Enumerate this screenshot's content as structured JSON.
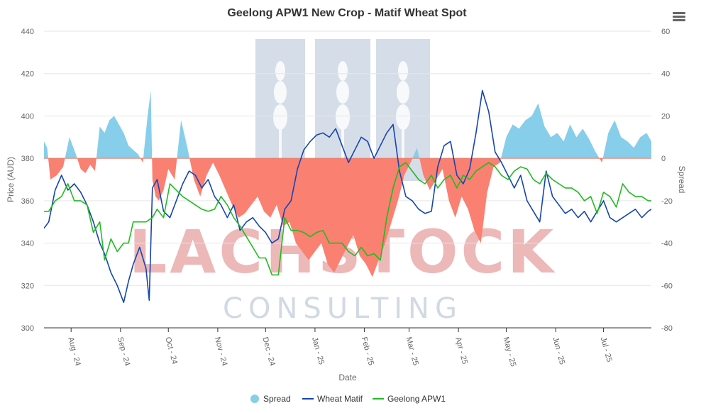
{
  "menu_icon": "hamburger-menu-icon",
  "watermark": {
    "line1": "LACHSTOCK",
    "line2": "CONSULTING",
    "icon": "wheat-logo"
  },
  "colors": {
    "spread_pos": "#87CEEB",
    "spread_neg": "#FA8072",
    "wheat_matif": "#1645B0",
    "geelong": "#22BB22",
    "grid": "#E6E6E6"
  },
  "chart_data": {
    "type": "line",
    "title": "Geelong APW1 New Crop - Matif Wheat Spot",
    "xlabel": "Date",
    "ylabel": "Price (AUD)",
    "y2label": "Spread",
    "ylim": [
      300,
      440
    ],
    "y_ticks": [
      300,
      320,
      340,
      360,
      380,
      400,
      420,
      440
    ],
    "y2lim": [
      -80,
      60
    ],
    "y2_ticks": [
      -80,
      -60,
      -40,
      -20,
      0,
      20,
      40,
      60
    ],
    "x_range": [
      "2024-07-15",
      "2025-07-31"
    ],
    "x_ticks": [
      {
        "date": "2024-08-01",
        "label": "Aug - 24"
      },
      {
        "date": "2024-09-01",
        "label": "Sep - 24"
      },
      {
        "date": "2024-10-01",
        "label": "Oct - 24"
      },
      {
        "date": "2024-11-01",
        "label": "Nov - 24"
      },
      {
        "date": "2024-12-01",
        "label": "Dec - 24"
      },
      {
        "date": "2025-01-01",
        "label": "Jan - 25"
      },
      {
        "date": "2025-02-01",
        "label": "Feb - 25"
      },
      {
        "date": "2025-03-01",
        "label": "Mar - 25"
      },
      {
        "date": "2025-04-01",
        "label": "Apr - 25"
      },
      {
        "date": "2025-05-01",
        "label": "May - 25"
      },
      {
        "date": "2025-06-01",
        "label": "Jun - 25"
      },
      {
        "date": "2025-07-01",
        "label": "Jul - 25"
      }
    ],
    "legend": "bottom-center",
    "grid": true,
    "series": [
      {
        "name": "Spread",
        "type": "area",
        "axis": "right",
        "color": "#87CEEB",
        "neg_color": "#FA8072",
        "x": [
          "2024-07-15",
          "2024-07-17",
          "2024-07-19",
          "2024-07-23",
          "2024-07-27",
          "2024-07-31",
          "2024-08-04",
          "2024-08-07",
          "2024-08-10",
          "2024-08-13",
          "2024-08-16",
          "2024-08-19",
          "2024-08-22",
          "2024-08-25",
          "2024-08-28",
          "2024-08-31",
          "2024-09-03",
          "2024-09-06",
          "2024-09-09",
          "2024-09-12",
          "2024-09-15",
          "2024-09-18",
          "2024-09-20",
          "2024-09-21",
          "2024-09-23",
          "2024-09-25",
          "2024-09-28",
          "2024-10-01",
          "2024-10-05",
          "2024-10-09",
          "2024-10-13",
          "2024-10-17",
          "2024-10-21",
          "2024-10-25",
          "2024-10-29",
          "2024-11-02",
          "2024-11-06",
          "2024-11-10",
          "2024-11-14",
          "2024-11-18",
          "2024-11-22",
          "2024-11-26",
          "2024-11-30",
          "2024-12-04",
          "2024-12-08",
          "2024-12-12",
          "2024-12-16",
          "2024-12-20",
          "2024-12-24",
          "2024-12-28",
          "2025-01-01",
          "2025-01-05",
          "2025-01-09",
          "2025-01-13",
          "2025-01-17",
          "2025-01-21",
          "2025-01-25",
          "2025-01-29",
          "2025-02-02",
          "2025-02-06",
          "2025-02-10",
          "2025-02-14",
          "2025-02-18",
          "2025-02-22",
          "2025-02-26",
          "2025-03-02",
          "2025-03-06",
          "2025-03-10",
          "2025-03-14",
          "2025-03-18",
          "2025-03-22",
          "2025-03-26",
          "2025-03-30",
          "2025-04-03",
          "2025-04-07",
          "2025-04-11",
          "2025-04-15",
          "2025-04-19",
          "2025-04-23",
          "2025-04-27",
          "2025-05-01",
          "2025-05-05",
          "2025-05-09",
          "2025-05-13",
          "2025-05-17",
          "2025-05-21",
          "2025-05-25",
          "2025-05-29",
          "2025-06-02",
          "2025-06-06",
          "2025-06-10",
          "2025-06-14",
          "2025-06-18",
          "2025-06-22",
          "2025-06-26",
          "2025-06-30",
          "2025-07-04",
          "2025-07-08",
          "2025-07-12",
          "2025-07-16",
          "2025-07-20",
          "2025-07-24",
          "2025-07-28",
          "2025-07-31"
        ],
        "values": [
          8,
          5,
          -10,
          -8,
          -4,
          10,
          2,
          -5,
          -7,
          -3,
          -6,
          15,
          12,
          18,
          20,
          16,
          12,
          6,
          4,
          2,
          -2,
          20,
          32,
          -10,
          -18,
          -20,
          -15,
          -5,
          -10,
          18,
          5,
          -10,
          -18,
          -8,
          -2,
          -8,
          -15,
          -22,
          -28,
          -26,
          -22,
          -18,
          -25,
          -28,
          -22,
          -32,
          -30,
          -40,
          -44,
          -48,
          -44,
          -40,
          -50,
          -54,
          -48,
          -42,
          -36,
          -46,
          -50,
          -56,
          -48,
          -40,
          -30,
          -20,
          -8,
          -2,
          5,
          -8,
          -15,
          -10,
          -5,
          -20,
          -28,
          -18,
          -24,
          -34,
          -40,
          -16,
          -4,
          -2,
          10,
          16,
          14,
          18,
          20,
          26,
          15,
          10,
          12,
          8,
          16,
          10,
          14,
          9,
          3,
          -2,
          12,
          18,
          10,
          8,
          5,
          10,
          12,
          8
        ]
      },
      {
        "name": "Wheat Matif",
        "type": "line",
        "axis": "left",
        "color": "#1645B0",
        "x": [
          "2024-07-15",
          "2024-07-18",
          "2024-07-22",
          "2024-07-26",
          "2024-07-30",
          "2024-08-03",
          "2024-08-07",
          "2024-08-11",
          "2024-08-15",
          "2024-08-19",
          "2024-08-22",
          "2024-08-26",
          "2024-08-30",
          "2024-09-03",
          "2024-09-06",
          "2024-09-09",
          "2024-09-13",
          "2024-09-17",
          "2024-09-19",
          "2024-09-21",
          "2024-09-24",
          "2024-09-28",
          "2024-10-02",
          "2024-10-06",
          "2024-10-10",
          "2024-10-14",
          "2024-10-18",
          "2024-10-22",
          "2024-10-26",
          "2024-10-30",
          "2024-11-03",
          "2024-11-07",
          "2024-11-11",
          "2024-11-15",
          "2024-11-19",
          "2024-11-23",
          "2024-11-27",
          "2024-12-01",
          "2024-12-05",
          "2024-12-09",
          "2024-12-13",
          "2024-12-17",
          "2024-12-21",
          "2024-12-25",
          "2024-12-29",
          "2025-01-02",
          "2025-01-06",
          "2025-01-10",
          "2025-01-14",
          "2025-01-18",
          "2025-01-22",
          "2025-01-26",
          "2025-01-30",
          "2025-02-03",
          "2025-02-07",
          "2025-02-11",
          "2025-02-15",
          "2025-02-19",
          "2025-02-23",
          "2025-02-27",
          "2025-03-03",
          "2025-03-07",
          "2025-03-11",
          "2025-03-15",
          "2025-03-19",
          "2025-03-23",
          "2025-03-27",
          "2025-03-31",
          "2025-04-04",
          "2025-04-08",
          "2025-04-12",
          "2025-04-16",
          "2025-04-20",
          "2025-04-24",
          "2025-04-28",
          "2025-05-02",
          "2025-05-06",
          "2025-05-10",
          "2025-05-14",
          "2025-05-18",
          "2025-05-22",
          "2025-05-26",
          "2025-05-30",
          "2025-06-03",
          "2025-06-07",
          "2025-06-11",
          "2025-06-15",
          "2025-06-19",
          "2025-06-23",
          "2025-06-27",
          "2025-07-01",
          "2025-07-05",
          "2025-07-09",
          "2025-07-13",
          "2025-07-17",
          "2025-07-21",
          "2025-07-25",
          "2025-07-29",
          "2025-07-31"
        ],
        "values": [
          347,
          350,
          365,
          372,
          365,
          368,
          364,
          358,
          350,
          340,
          335,
          326,
          320,
          312,
          322,
          330,
          338,
          328,
          313,
          366,
          370,
          355,
          352,
          360,
          368,
          374,
          372,
          366,
          370,
          362,
          358,
          352,
          358,
          346,
          350,
          352,
          348,
          345,
          340,
          342,
          356,
          360,
          375,
          384,
          388,
          391,
          392,
          390,
          394,
          386,
          378,
          384,
          390,
          388,
          380,
          386,
          392,
          396,
          374,
          362,
          360,
          356,
          354,
          355,
          376,
          386,
          388,
          372,
          368,
          375,
          392,
          412,
          402,
          383,
          378,
          372,
          366,
          372,
          360,
          355,
          350,
          374,
          362,
          358,
          354,
          356,
          352,
          355,
          350,
          355,
          360,
          352,
          350,
          352,
          354,
          356,
          352,
          355,
          356
        ]
      },
      {
        "name": "Geelong APW1",
        "type": "line",
        "axis": "left",
        "color": "#22BB22",
        "x": [
          "2024-07-15",
          "2024-07-18",
          "2024-07-22",
          "2024-07-26",
          "2024-07-30",
          "2024-08-03",
          "2024-08-07",
          "2024-08-11",
          "2024-08-15",
          "2024-08-19",
          "2024-08-22",
          "2024-08-26",
          "2024-08-30",
          "2024-09-03",
          "2024-09-06",
          "2024-09-09",
          "2024-09-13",
          "2024-09-17",
          "2024-09-21",
          "2024-09-24",
          "2024-09-28",
          "2024-10-02",
          "2024-10-06",
          "2024-10-10",
          "2024-10-14",
          "2024-10-18",
          "2024-10-22",
          "2024-10-26",
          "2024-10-30",
          "2024-11-03",
          "2024-11-07",
          "2024-11-11",
          "2024-11-15",
          "2024-11-19",
          "2024-11-23",
          "2024-11-27",
          "2024-12-01",
          "2024-12-05",
          "2024-12-09",
          "2024-12-13",
          "2024-12-17",
          "2024-12-21",
          "2024-12-25",
          "2024-12-29",
          "2025-01-02",
          "2025-01-06",
          "2025-01-10",
          "2025-01-14",
          "2025-01-18",
          "2025-01-22",
          "2025-01-26",
          "2025-01-30",
          "2025-02-03",
          "2025-02-07",
          "2025-02-11",
          "2025-02-15",
          "2025-02-19",
          "2025-02-23",
          "2025-02-27",
          "2025-03-03",
          "2025-03-07",
          "2025-03-11",
          "2025-03-15",
          "2025-03-19",
          "2025-03-23",
          "2025-03-27",
          "2025-03-31",
          "2025-04-04",
          "2025-04-08",
          "2025-04-12",
          "2025-04-16",
          "2025-04-20",
          "2025-04-24",
          "2025-04-28",
          "2025-05-02",
          "2025-05-06",
          "2025-05-10",
          "2025-05-14",
          "2025-05-18",
          "2025-05-22",
          "2025-05-26",
          "2025-05-30",
          "2025-06-03",
          "2025-06-07",
          "2025-06-11",
          "2025-06-15",
          "2025-06-19",
          "2025-06-23",
          "2025-06-27",
          "2025-07-01",
          "2025-07-05",
          "2025-07-09",
          "2025-07-13",
          "2025-07-17",
          "2025-07-21",
          "2025-07-25",
          "2025-07-29",
          "2025-07-31"
        ],
        "values": [
          355,
          355,
          360,
          362,
          368,
          360,
          360,
          358,
          345,
          350,
          332,
          342,
          336,
          340,
          340,
          350,
          350,
          350,
          352,
          356,
          352,
          368,
          365,
          362,
          360,
          358,
          356,
          355,
          356,
          362,
          358,
          352,
          348,
          343,
          338,
          333,
          333,
          325,
          325,
          352,
          346,
          346,
          345,
          343,
          345,
          346,
          340,
          340,
          340,
          336,
          334,
          338,
          334,
          335,
          332,
          352,
          366,
          376,
          378,
          374,
          370,
          368,
          372,
          366,
          370,
          372,
          366,
          372,
          370,
          374,
          376,
          378,
          376,
          372,
          370,
          374,
          376,
          375,
          370,
          368,
          373,
          370,
          368,
          366,
          366,
          364,
          360,
          362,
          354,
          364,
          362,
          357,
          368,
          364,
          362,
          362,
          360,
          360
        ]
      }
    ]
  }
}
